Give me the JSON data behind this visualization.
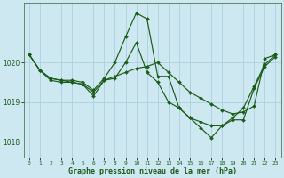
{
  "title": "Graphe pression niveau de la mer (hPa)",
  "background_color": "#cde8f0",
  "grid_color": "#aacfde",
  "line_color": "#1a5c1a",
  "xlabel_color": "#1a5c1a",
  "xlim": [
    -0.5,
    23.5
  ],
  "ylim": [
    1017.6,
    1021.5
  ],
  "yticks": [
    1018,
    1019,
    1020
  ],
  "xticks": [
    0,
    1,
    2,
    3,
    4,
    5,
    6,
    7,
    8,
    9,
    10,
    11,
    12,
    13,
    14,
    15,
    16,
    17,
    18,
    19,
    20,
    21,
    22,
    23
  ],
  "series": [
    [
      1020.2,
      1019.8,
      1019.6,
      1019.55,
      1019.55,
      1019.5,
      1019.3,
      1019.6,
      1020.0,
      1020.65,
      1021.25,
      1021.1,
      1019.65,
      1019.65,
      1018.85,
      1018.6,
      1018.35,
      1018.1,
      1018.4,
      1018.55,
      1018.55,
      1019.35,
      1019.9,
      1020.15
    ],
    [
      1020.2,
      1019.8,
      1019.6,
      1019.55,
      1019.5,
      1019.45,
      1019.25,
      1019.55,
      1019.65,
      1019.75,
      1019.85,
      1019.9,
      1020.0,
      1019.75,
      1019.5,
      1019.25,
      1019.1,
      1018.95,
      1018.8,
      1018.7,
      1018.75,
      1018.9,
      1020.1,
      1020.2
    ],
    [
      1020.2,
      1019.8,
      1019.55,
      1019.5,
      1019.5,
      1019.45,
      1019.15,
      1019.55,
      1019.6,
      1020.0,
      1020.5,
      1019.75,
      1019.5,
      1019.0,
      1018.85,
      1018.6,
      1018.5,
      1018.4,
      1018.4,
      1018.6,
      1018.85,
      1019.4,
      1019.95,
      1020.2
    ]
  ]
}
